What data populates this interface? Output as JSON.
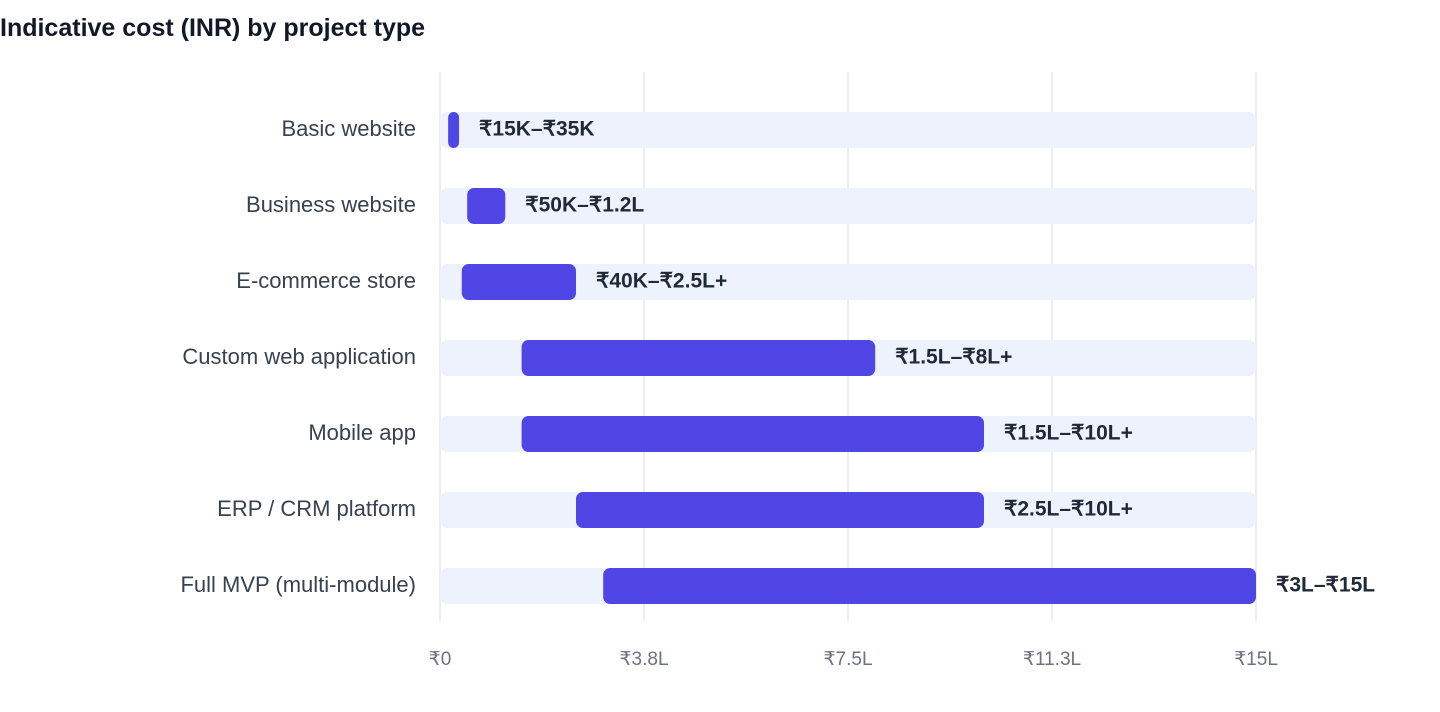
{
  "title": "Indicative cost (INR) by project type",
  "chart_data": {
    "type": "bar",
    "orientation": "horizontal",
    "subtype": "range",
    "title": "Indicative cost (INR) by project type",
    "xlabel": "",
    "ylabel": "",
    "unit": "INR (lakh)",
    "xlim": [
      0,
      15
    ],
    "grid": true,
    "x_ticks": [
      {
        "value": 0,
        "label": "₹0"
      },
      {
        "value": 3.75,
        "label": "₹3.8L"
      },
      {
        "value": 7.5,
        "label": "₹7.5L"
      },
      {
        "value": 11.25,
        "label": "₹11.3L"
      },
      {
        "value": 15,
        "label": "₹15L"
      }
    ],
    "colors": {
      "bar": "#4f46e5",
      "track": "#eef2fc",
      "grid": "#e5e7eb"
    },
    "categories": [
      "Basic website",
      "Business website",
      "E-commerce store",
      "Custom web application",
      "Mobile app",
      "ERP / CRM platform",
      "Full MVP (multi-module)"
    ],
    "ranges": [
      {
        "low": 0.15,
        "high": 0.35,
        "label": "₹15K–₹35K"
      },
      {
        "low": 0.5,
        "high": 1.2,
        "label": "₹50K–₹1.2L"
      },
      {
        "low": 0.4,
        "high": 2.5,
        "label": "₹40K–₹2.5L+"
      },
      {
        "low": 1.5,
        "high": 8,
        "label": "₹1.5L–₹8L+"
      },
      {
        "low": 1.5,
        "high": 10,
        "label": "₹1.5L–₹10L+"
      },
      {
        "low": 2.5,
        "high": 10,
        "label": "₹2.5L–₹10L+"
      },
      {
        "low": 3,
        "high": 15,
        "label": "₹3L–₹15L"
      }
    ]
  }
}
